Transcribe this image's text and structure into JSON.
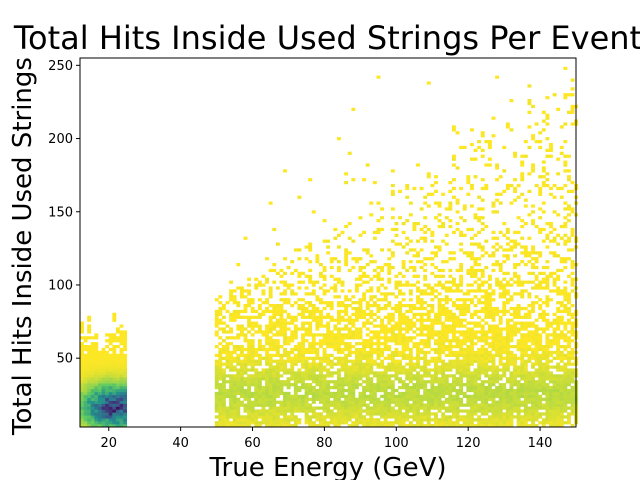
{
  "chart_data": {
    "type": "heatmap",
    "title": "Total Hits Inside Used Strings Per Event",
    "xlabel": "True Energy (GeV)",
    "ylabel": "Total Hits Inside Used Strings",
    "xlim": [
      12,
      150
    ],
    "ylim": [
      3,
      255
    ],
    "xticks": [
      20,
      40,
      60,
      80,
      100,
      120,
      140
    ],
    "yticks": [
      50,
      100,
      150,
      200,
      250
    ],
    "colormap": "viridis",
    "colors": {
      "low": "#fde725",
      "mid": "#21918c",
      "high": "#440154",
      "background": "#ffffff"
    },
    "regions": [
      {
        "x_range": [
          12,
          25
        ],
        "y_range": [
          3,
          92
        ],
        "density_peak_y": 16,
        "peak_x": 21,
        "note": "dense"
      },
      {
        "x_range": [
          49.5,
          150
        ],
        "y_range": [
          3,
          255
        ],
        "density_peak_y": 25,
        "note": "sparse"
      }
    ],
    "grid": false
  }
}
